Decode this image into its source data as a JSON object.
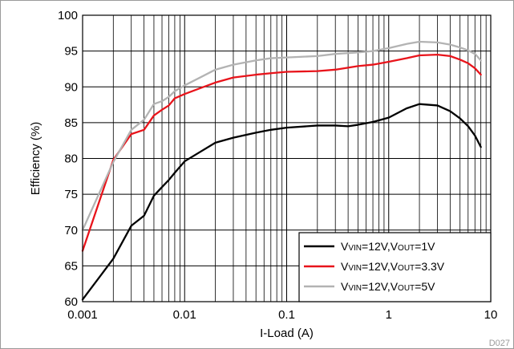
{
  "chart_data": {
    "type": "line",
    "title": "",
    "xlabel": "I-Load (A)",
    "ylabel": "Efficiency (%)",
    "x_scale": "log",
    "xlim": [
      0.001,
      10
    ],
    "ylim": [
      60,
      100
    ],
    "x_ticks": [
      0.001,
      0.01,
      0.1,
      1,
      10
    ],
    "x_tick_labels": [
      "0.001",
      "0.01",
      "0.1",
      "1",
      "10"
    ],
    "y_ticks": [
      60,
      65,
      70,
      75,
      80,
      85,
      90,
      95,
      100
    ],
    "y_tick_labels": [
      "60",
      "65",
      "70",
      "75",
      "80",
      "85",
      "90",
      "95",
      "100"
    ],
    "grid": true,
    "legend_position": "bottom-right",
    "figure_id": "D027",
    "series": [
      {
        "legend": [
          {
            "t": "V"
          },
          {
            "t": "VIN",
            "sub": true
          },
          {
            "t": "=12V,V"
          },
          {
            "t": "OUT",
            "sub": true
          },
          {
            "t": "=1V"
          }
        ],
        "color": "#000000",
        "x": [
          0.001,
          0.002,
          0.003,
          0.004,
          0.005,
          0.006,
          0.007,
          0.008,
          0.01,
          0.02,
          0.03,
          0.05,
          0.07,
          0.1,
          0.2,
          0.3,
          0.4,
          0.5,
          0.7,
          1,
          1.5,
          2,
          3,
          4,
          5,
          6,
          7,
          8
        ],
        "y": [
          60.3,
          66.0,
          70.6,
          72.0,
          74.8,
          76.0,
          77.0,
          78.0,
          79.6,
          82.2,
          82.9,
          83.6,
          84.0,
          84.3,
          84.6,
          84.6,
          84.5,
          84.7,
          85.1,
          85.7,
          87.0,
          87.6,
          87.4,
          86.6,
          85.6,
          84.5,
          83.2,
          81.6
        ]
      },
      {
        "legend": [
          {
            "t": "V"
          },
          {
            "t": "VIN",
            "sub": true
          },
          {
            "t": "=12V,V"
          },
          {
            "t": "OUT",
            "sub": true
          },
          {
            "t": "=3.3V"
          }
        ],
        "color": "#e8141b",
        "x": [
          0.001,
          0.002,
          0.003,
          0.004,
          0.005,
          0.006,
          0.007,
          0.008,
          0.01,
          0.02,
          0.03,
          0.05,
          0.07,
          0.1,
          0.2,
          0.3,
          0.5,
          0.7,
          1,
          1.5,
          2,
          3,
          4,
          5,
          6,
          7,
          8
        ],
        "y": [
          67.1,
          79.8,
          83.4,
          84.0,
          86.0,
          86.8,
          87.4,
          88.4,
          89.0,
          90.6,
          91.3,
          91.7,
          91.9,
          92.1,
          92.2,
          92.4,
          92.9,
          93.1,
          93.5,
          94.0,
          94.4,
          94.5,
          94.3,
          93.8,
          93.3,
          92.6,
          91.7
        ]
      },
      {
        "legend": [
          {
            "t": "V"
          },
          {
            "t": "VIN",
            "sub": true
          },
          {
            "t": "=12V,V"
          },
          {
            "t": "OUT",
            "sub": true
          },
          {
            "t": "=5V"
          }
        ],
        "color": "#b3b3b3",
        "x": [
          0.001,
          0.002,
          0.003,
          0.004,
          0.005,
          0.006,
          0.007,
          0.008,
          0.01,
          0.02,
          0.03,
          0.05,
          0.07,
          0.1,
          0.2,
          0.3,
          0.5,
          0.7,
          1,
          1.5,
          2,
          3,
          4,
          5,
          6,
          7,
          8
        ],
        "y": [
          70.0,
          79.5,
          84.0,
          85.4,
          87.6,
          88.0,
          88.6,
          89.4,
          90.2,
          92.4,
          93.1,
          93.7,
          94.0,
          94.1,
          94.3,
          94.6,
          94.8,
          95.0,
          95.4,
          96.0,
          96.3,
          96.2,
          95.9,
          95.5,
          95.1,
          94.6,
          93.7
        ]
      }
    ]
  }
}
